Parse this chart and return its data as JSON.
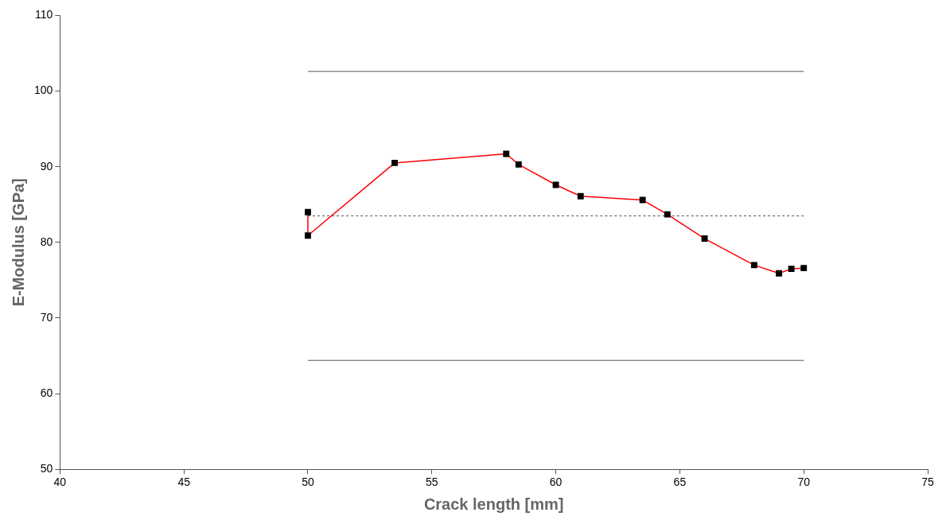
{
  "chart_data": {
    "type": "line",
    "xlabel": "Crack length [mm]",
    "ylabel": "E-Modulus [GPa]",
    "xlim": [
      40,
      75
    ],
    "xticks": [
      40,
      45,
      50,
      55,
      60,
      65,
      70,
      75
    ],
    "ylim": [
      50,
      110
    ],
    "yticks": [
      50,
      60,
      70,
      80,
      90,
      100,
      110
    ],
    "grid": false,
    "legend": false,
    "series": [
      {
        "color": "#ff0000",
        "marker": "square",
        "x": [
          50,
          50,
          53.5,
          58,
          58.5,
          60,
          61,
          63.5,
          64.5,
          66,
          68,
          69,
          69.5,
          70
        ],
        "values": [
          84.0,
          80.9,
          90.5,
          91.7,
          90.3,
          87.6,
          86.1,
          85.6,
          83.7,
          80.5,
          77.0,
          75.9,
          76.5,
          76.6
        ]
      },
      {
        "color": "#555555",
        "marker": "none",
        "line_style": "solid",
        "x": [
          50,
          70
        ],
        "values": [
          102.6,
          102.6
        ]
      },
      {
        "color": "#555555",
        "marker": "none",
        "line_style": "dashed",
        "x": [
          50,
          70
        ],
        "values": [
          83.5,
          83.5
        ]
      },
      {
        "color": "#555555",
        "marker": "none",
        "line_style": "solid",
        "x": [
          50,
          70
        ],
        "values": [
          64.4,
          64.4
        ]
      }
    ]
  }
}
